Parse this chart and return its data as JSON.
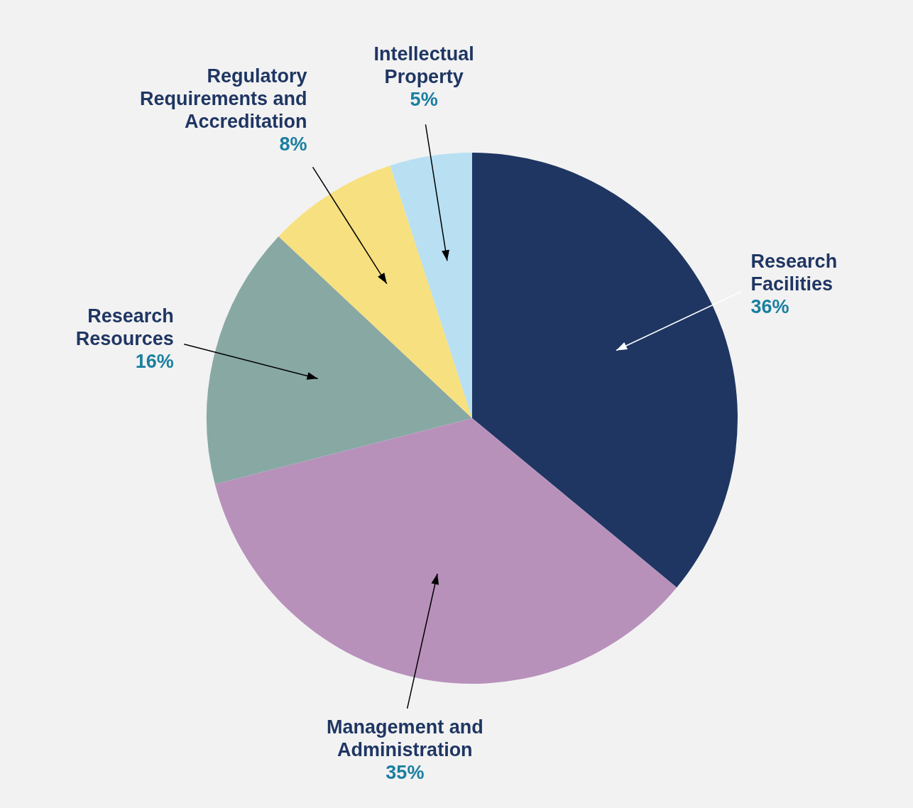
{
  "chart_data": {
    "type": "pie",
    "categories": [
      "Research Facilities",
      "Management and Administration",
      "Research Resources",
      "Regulatory Requirements and Accreditation",
      "Intellectual Property"
    ],
    "values": [
      36,
      35,
      16,
      8,
      5
    ],
    "colors": [
      "#1f3663",
      "#b891bb",
      "#88a8a4",
      "#f7e07f",
      "#b8e0f2"
    ],
    "value_labels": [
      "36%",
      "35%",
      "16%",
      "8%",
      "5%"
    ],
    "legend": false
  }
}
